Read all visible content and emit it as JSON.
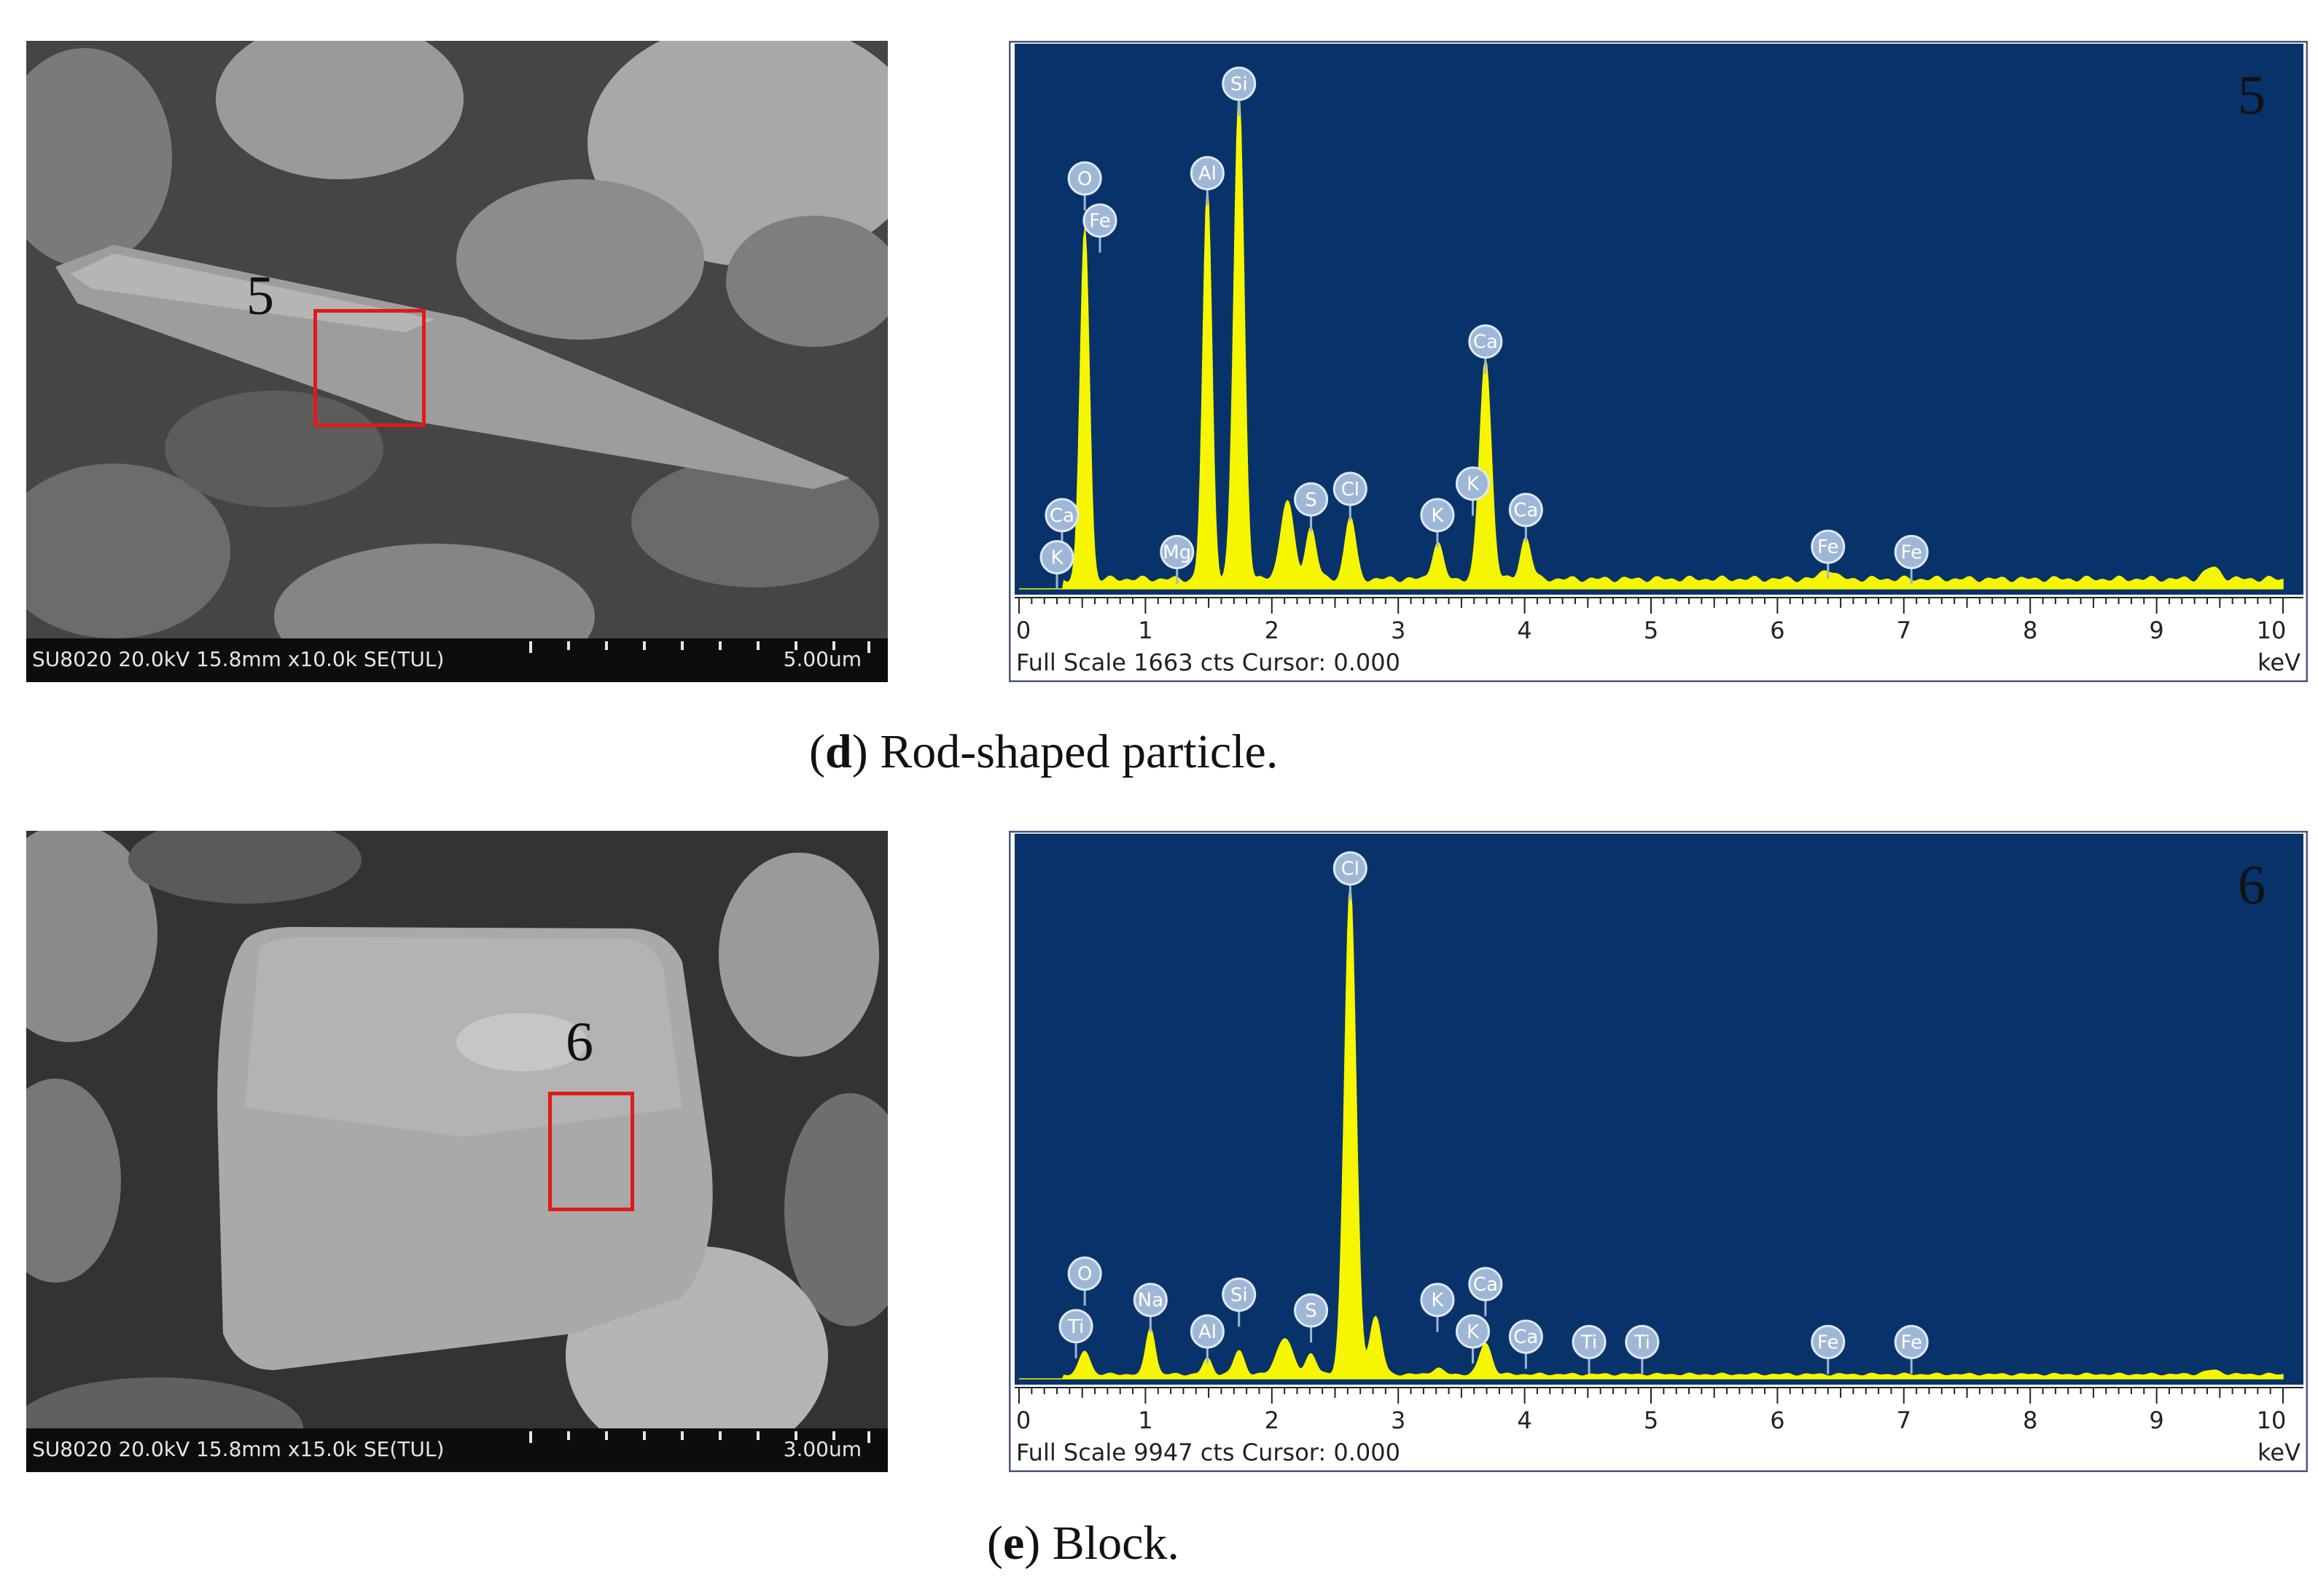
{
  "panels": [
    {
      "id": "d",
      "caption_letter": "d",
      "caption_text": "Rod-shaped particle.",
      "sem": {
        "label": "5",
        "info": "SU8020 20.0kV 15.8mm x10.0k SE(TUL)",
        "scale": "5.00um",
        "background": "#404040"
      },
      "eds": {
        "corner_label": "5",
        "footer": "Full Scale 1663 cts Cursor: 0.000",
        "unit": "keV"
      }
    },
    {
      "id": "e",
      "caption_letter": "e",
      "caption_text": "Block.",
      "sem": {
        "label": "6",
        "info": "SU8020 20.0kV 15.8mm x15.0k SE(TUL)",
        "scale": "3.00um",
        "background": "#363636"
      },
      "eds": {
        "corner_label": "6",
        "footer": "Full Scale 9947 cts Cursor: 0.000",
        "unit": "keV"
      }
    }
  ],
  "colors": {
    "plot_background": "#08336a",
    "spectrum": "#f6f600",
    "roi_box": "#e01a1a",
    "element_marker": "#9fb7d6"
  },
  "chart_data": [
    {
      "type": "area",
      "panel": "d",
      "x_unit": "keV",
      "xlim": [
        0,
        10
      ],
      "x_ticks": [
        0,
        1,
        2,
        3,
        4,
        5,
        6,
        7,
        8,
        9,
        10
      ],
      "full_scale_counts": 1663,
      "peaks": [
        {
          "kev": 0.52,
          "height": 0.67,
          "width": 0.035
        },
        {
          "kev": 1.49,
          "height": 0.74,
          "width": 0.035
        },
        {
          "kev": 1.74,
          "height": 0.92,
          "width": 0.04
        },
        {
          "kev": 2.12,
          "height": 0.15,
          "width": 0.05
        },
        {
          "kev": 2.31,
          "height": 0.1,
          "width": 0.04
        },
        {
          "kev": 2.62,
          "height": 0.12,
          "width": 0.04
        },
        {
          "kev": 3.31,
          "height": 0.07,
          "width": 0.04
        },
        {
          "kev": 3.69,
          "height": 0.42,
          "width": 0.045
        },
        {
          "kev": 4.01,
          "height": 0.08,
          "width": 0.04
        },
        {
          "kev": 6.4,
          "height": 0.02,
          "width": 0.05
        },
        {
          "kev": 9.44,
          "height": 0.022,
          "width": 0.06
        }
      ],
      "background_level": 0.018,
      "element_labels": [
        {
          "symbol": "O",
          "kev": 0.52,
          "height": 0.78
        },
        {
          "symbol": "Fe",
          "kev": 0.64,
          "height": 0.7
        },
        {
          "symbol": "Ca",
          "kev": 0.34,
          "height": 0.14
        },
        {
          "symbol": "K",
          "kev": 0.3,
          "height": 0.06
        },
        {
          "symbol": "Mg",
          "kev": 1.25,
          "height": 0.07
        },
        {
          "symbol": "Al",
          "kev": 1.49,
          "height": 0.79
        },
        {
          "symbol": "Si",
          "kev": 1.74,
          "height": 0.96
        },
        {
          "symbol": "S",
          "kev": 2.31,
          "height": 0.17
        },
        {
          "symbol": "Cl",
          "kev": 2.62,
          "height": 0.19
        },
        {
          "symbol": "K",
          "kev": 3.31,
          "height": 0.14
        },
        {
          "symbol": "K",
          "kev": 3.59,
          "height": 0.2
        },
        {
          "symbol": "Ca",
          "kev": 3.69,
          "height": 0.47
        },
        {
          "symbol": "Ca",
          "kev": 4.01,
          "height": 0.15
        },
        {
          "symbol": "Fe",
          "kev": 6.4,
          "height": 0.08
        },
        {
          "symbol": "Fe",
          "kev": 7.06,
          "height": 0.07
        }
      ]
    },
    {
      "type": "area",
      "panel": "e",
      "x_unit": "keV",
      "xlim": [
        0,
        10
      ],
      "x_ticks": [
        0,
        1,
        2,
        3,
        4,
        5,
        6,
        7,
        8,
        9,
        10
      ],
      "full_scale_counts": 9947,
      "peaks": [
        {
          "kev": 0.52,
          "height": 0.045,
          "width": 0.04
        },
        {
          "kev": 1.04,
          "height": 0.09,
          "width": 0.035
        },
        {
          "kev": 1.49,
          "height": 0.03,
          "width": 0.035
        },
        {
          "kev": 1.74,
          "height": 0.045,
          "width": 0.04
        },
        {
          "kev": 2.1,
          "height": 0.07,
          "width": 0.06
        },
        {
          "kev": 2.31,
          "height": 0.04,
          "width": 0.04
        },
        {
          "kev": 2.62,
          "height": 0.93,
          "width": 0.045
        },
        {
          "kev": 2.82,
          "height": 0.11,
          "width": 0.045
        },
        {
          "kev": 3.31,
          "height": 0.012,
          "width": 0.04
        },
        {
          "kev": 3.69,
          "height": 0.06,
          "width": 0.045
        },
        {
          "kev": 9.44,
          "height": 0.008,
          "width": 0.06
        }
      ],
      "background_level": 0.008,
      "element_labels": [
        {
          "symbol": "O",
          "kev": 0.52,
          "height": 0.2
        },
        {
          "symbol": "Ti",
          "kev": 0.45,
          "height": 0.1
        },
        {
          "symbol": "Na",
          "kev": 1.04,
          "height": 0.15
        },
        {
          "symbol": "Al",
          "kev": 1.49,
          "height": 0.09
        },
        {
          "symbol": "Si",
          "kev": 1.74,
          "height": 0.16
        },
        {
          "symbol": "S",
          "kev": 2.31,
          "height": 0.13
        },
        {
          "symbol": "Cl",
          "kev": 2.62,
          "height": 0.97
        },
        {
          "symbol": "K",
          "kev": 3.31,
          "height": 0.15
        },
        {
          "symbol": "Ca",
          "kev": 3.69,
          "height": 0.18
        },
        {
          "symbol": "K",
          "kev": 3.59,
          "height": 0.09
        },
        {
          "symbol": "Ca",
          "kev": 4.01,
          "height": 0.08
        },
        {
          "symbol": "Ti",
          "kev": 4.51,
          "height": 0.07
        },
        {
          "symbol": "Ti",
          "kev": 4.93,
          "height": 0.07
        },
        {
          "symbol": "Fe",
          "kev": 6.4,
          "height": 0.07
        },
        {
          "symbol": "Fe",
          "kev": 7.06,
          "height": 0.07
        }
      ]
    }
  ]
}
